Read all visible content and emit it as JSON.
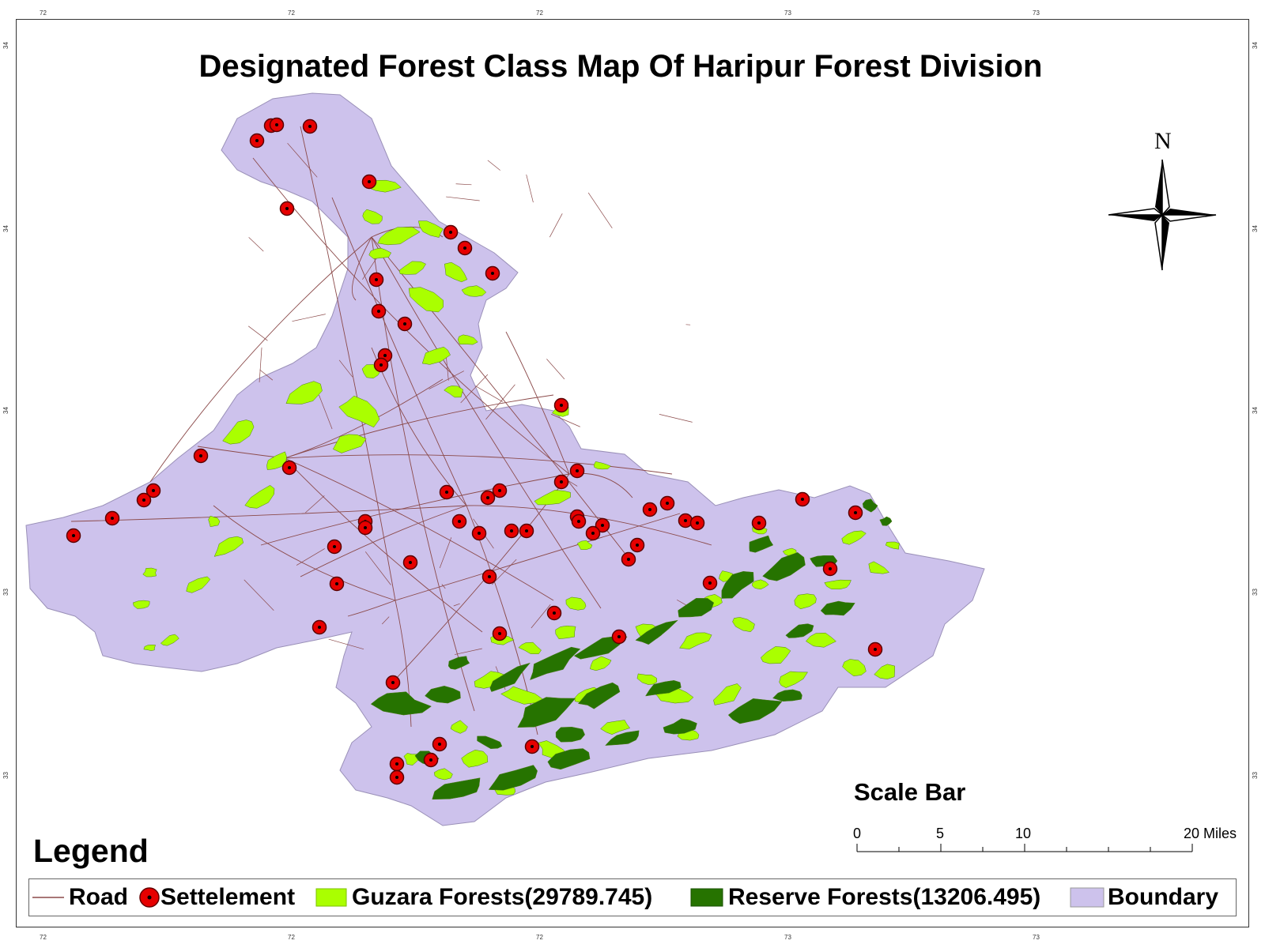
{
  "map": {
    "title": "Designated Forest Class Map Of Haripur Forest Division",
    "north_label": "N",
    "colors": {
      "boundary": "#cdc2ec",
      "guzara": "#aaff00",
      "reserve": "#267300",
      "road": "#8b4a4a",
      "settlement": "#e60000"
    },
    "graticule": {
      "top": [
        "72",
        "72",
        "72",
        "73",
        "73"
      ],
      "bottom": [
        "72",
        "72",
        "72",
        "73",
        "73"
      ],
      "left": [
        "34",
        "34",
        "34",
        "33",
        "33"
      ],
      "right": [
        "34",
        "34",
        "34",
        "33",
        "33"
      ]
    }
  },
  "scale_bar": {
    "title": "Scale Bar",
    "labels": [
      "0",
      "5",
      "10",
      "20 Miles"
    ]
  },
  "legend": {
    "title": "Legend",
    "items": [
      {
        "label": "Road",
        "symbol": "line"
      },
      {
        "label": "Settelement",
        "symbol": "dot"
      },
      {
        "label": "Guzara Forests(29789.745)",
        "symbol": "guzara"
      },
      {
        "label": "Reserve Forests(13206.495)",
        "symbol": "reserve"
      },
      {
        "label": "Boundary",
        "symbol": "boundary"
      }
    ]
  }
}
